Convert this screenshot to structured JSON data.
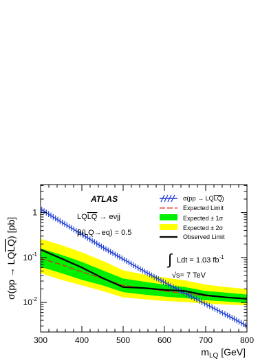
{
  "chart_data": {
    "type": "line",
    "ylabel": "σ(pp → LQLQ) [pb]",
    "ylabel_parts": {
      "prefix": "σ(pp → LQ",
      "overlined": "LQ",
      "suffix": ") [pb]"
    },
    "xlabel": {
      "base": "m",
      "sub": "LQ",
      "unit": " [GeV]"
    },
    "xlim": [
      300,
      800
    ],
    "ylim": [
      0.0022,
      4.2
    ],
    "yscale": "log",
    "x_ticks": [
      "300",
      "400",
      "500",
      "600",
      "700",
      "800"
    ],
    "y_ticks": [
      {
        "value": 1,
        "label": "1"
      },
      {
        "value": 0.1,
        "label": "10",
        "exp": "-1"
      },
      {
        "value": 0.01,
        "label": "10",
        "exp": "-2"
      }
    ],
    "annotations": {
      "atlas": "ATLAS",
      "process": {
        "pre": "LQ",
        "over": "LQ",
        "post": " → eνjj"
      },
      "beta": "β(LQ→eq) = 0.5",
      "lumi": {
        "integral": "∫",
        "text": "Ldt = 1.03 fb",
        "exp": "-1"
      },
      "energy": {
        "root": "√",
        "text": "s= 7 TeV"
      }
    },
    "legend_position": "top-right",
    "legend": {
      "theory": {
        "pre": "σ(pp → LQ",
        "over": "LQ",
        "post": ")"
      },
      "expected": "Expected Limit",
      "band1": "Expected ± 1σ",
      "band2": "Expected ± 2σ",
      "observed": "Observed Limit"
    },
    "colors": {
      "theory": "#1f3fd6",
      "expected": "#e3261b",
      "band1": "#00ee00",
      "band2": "#ffff00",
      "observed": "#000000"
    },
    "series": {
      "theory": {
        "x": [
          300,
          350,
          400,
          450,
          500,
          550,
          600,
          650,
          700,
          750,
          800
        ],
        "y": [
          1.2,
          0.62,
          0.33,
          0.17,
          0.092,
          0.05,
          0.028,
          0.016,
          0.0092,
          0.0053,
          0.003
        ]
      },
      "expected": {
        "x": [
          300,
          350,
          400,
          450,
          500,
          550,
          600,
          650,
          700,
          750,
          800
        ],
        "y": [
          0.095,
          0.07,
          0.048,
          0.034,
          0.024,
          0.021,
          0.018,
          0.016,
          0.014,
          0.013,
          0.012
        ]
      },
      "band1": {
        "x": [
          300,
          350,
          400,
          450,
          500,
          550,
          600,
          650,
          700,
          750,
          800
        ],
        "low": [
          0.062,
          0.045,
          0.032,
          0.024,
          0.017,
          0.015,
          0.0135,
          0.0125,
          0.0112,
          0.0105,
          0.0098
        ],
        "high": [
          0.16,
          0.115,
          0.08,
          0.052,
          0.034,
          0.029,
          0.025,
          0.022,
          0.018,
          0.0165,
          0.015
        ]
      },
      "band2": {
        "x": [
          300,
          350,
          400,
          450,
          500,
          550,
          600,
          650,
          700,
          750,
          800
        ],
        "low": [
          0.045,
          0.032,
          0.024,
          0.018,
          0.013,
          0.0118,
          0.0108,
          0.0102,
          0.0094,
          0.009,
          0.0086
        ],
        "high": [
          0.26,
          0.19,
          0.13,
          0.085,
          0.052,
          0.042,
          0.036,
          0.031,
          0.025,
          0.022,
          0.02
        ]
      },
      "observed": {
        "x": [
          300,
          350,
          400,
          450,
          500,
          550,
          600,
          650,
          700,
          750,
          800
        ],
        "y": [
          0.15,
          0.095,
          0.06,
          0.035,
          0.022,
          0.021,
          0.019,
          0.018,
          0.0145,
          0.013,
          0.012
        ]
      }
    }
  }
}
